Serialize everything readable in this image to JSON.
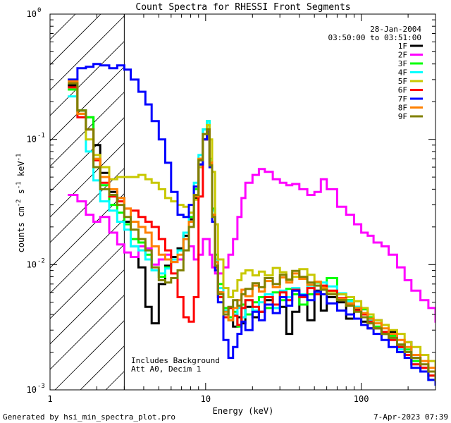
{
  "chart_data": {
    "type": "line",
    "step": true,
    "title": "Count Spectra for RHESSI Front Segments",
    "xlabel": "Energy (keV)",
    "ylabel": "counts cm-2 s-1 keV-1",
    "xscale": "log",
    "yscale": "log",
    "xlim": [
      1,
      300
    ],
    "ylim": [
      0.001,
      1
    ],
    "xticks": [
      {
        "value": 1,
        "label": "1"
      },
      {
        "value": 10,
        "label": "10"
      },
      {
        "value": 100,
        "label": "100"
      }
    ],
    "yticks": [
      {
        "value": 0.001,
        "base": "10",
        "exp": "-3"
      },
      {
        "value": 0.01,
        "base": "10",
        "exp": "-2"
      },
      {
        "value": 0.1,
        "base": "10",
        "exp": "-1"
      },
      {
        "value": 1,
        "base": "10",
        "exp": "0"
      }
    ],
    "shaded_region": {
      "x_from": 1,
      "x_to": 3,
      "style": "diagonal hatching"
    },
    "date": "28-Jan-2004",
    "time_range": "03:50:00 to 03:51:00",
    "annotations": [
      "Includes Background",
      "Att A0, Decim 1"
    ],
    "footer_left": "Generated by hsi_min_spectra_plot.pro",
    "footer_right": "7-Apr-2023 07:39",
    "legend_position": "top-right",
    "series": [
      {
        "name": "1F",
        "color": "#000000",
        "x": [
          1.3,
          1.5,
          1.7,
          1.9,
          2.1,
          2.4,
          2.7,
          3.0,
          3.3,
          3.7,
          4.1,
          4.5,
          5.0,
          5.5,
          6.0,
          6.6,
          7.2,
          7.8,
          8.4,
          9.0,
          9.6,
          10.2,
          10.6,
          11.0,
          11.5,
          12.0,
          13,
          14,
          15,
          16,
          17,
          18,
          20,
          22,
          24,
          27,
          30,
          33,
          36,
          40,
          45,
          50,
          55,
          60,
          70,
          80,
          90,
          100,
          110,
          120,
          135,
          150,
          170,
          190,
          210,
          240,
          270,
          300
        ],
        "y": [
          0.27,
          0.17,
          0.15,
          0.09,
          0.054,
          0.038,
          0.034,
          0.022,
          0.014,
          0.0095,
          0.0046,
          0.0034,
          0.007,
          0.0098,
          0.0115,
          0.0135,
          0.017,
          0.023,
          0.034,
          0.063,
          0.1,
          0.11,
          0.06,
          0.025,
          0.0095,
          0.006,
          0.0038,
          0.0045,
          0.0032,
          0.0038,
          0.0034,
          0.0046,
          0.0038,
          0.0042,
          0.0052,
          0.0045,
          0.0046,
          0.0028,
          0.0042,
          0.0055,
          0.0036,
          0.0062,
          0.0043,
          0.0055,
          0.005,
          0.0037,
          0.0044,
          0.0035,
          0.0031,
          0.0036,
          0.0028,
          0.0029,
          0.0022,
          0.0024,
          0.0018,
          0.0015,
          0.0012,
          0.0012
        ]
      },
      {
        "name": "2F",
        "color": "#ff00ff",
        "x": [
          1.3,
          1.5,
          1.7,
          1.9,
          2.1,
          2.4,
          2.7,
          3.0,
          3.3,
          3.7,
          4.1,
          4.5,
          5.0,
          5.5,
          6.0,
          6.6,
          7.2,
          7.8,
          8.4,
          9.0,
          9.6,
          10.2,
          10.6,
          11.0,
          11.5,
          12.0,
          13,
          14,
          15,
          16,
          17,
          18,
          20,
          22,
          24,
          27,
          30,
          33,
          36,
          40,
          45,
          50,
          55,
          60,
          70,
          80,
          90,
          100,
          110,
          120,
          135,
          150,
          170,
          190,
          210,
          240,
          270,
          300
        ],
        "y": [
          0.036,
          0.032,
          0.025,
          0.022,
          0.024,
          0.018,
          0.0145,
          0.0125,
          0.0115,
          0.014,
          0.0135,
          0.01,
          0.011,
          0.012,
          0.0105,
          0.011,
          0.016,
          0.014,
          0.011,
          0.012,
          0.016,
          0.016,
          0.012,
          0.0095,
          0.0085,
          0.0085,
          0.0095,
          0.012,
          0.016,
          0.024,
          0.034,
          0.045,
          0.052,
          0.058,
          0.055,
          0.048,
          0.045,
          0.043,
          0.044,
          0.04,
          0.036,
          0.038,
          0.048,
          0.04,
          0.029,
          0.025,
          0.021,
          0.018,
          0.017,
          0.015,
          0.014,
          0.012,
          0.0095,
          0.0075,
          0.0062,
          0.0052,
          0.0045,
          0.0035
        ]
      },
      {
        "name": "3F",
        "color": "#00ff00",
        "x": [
          1.3,
          1.5,
          1.7,
          1.9,
          2.1,
          2.4,
          2.7,
          3.0,
          3.3,
          3.7,
          4.1,
          4.5,
          5.0,
          5.5,
          6.0,
          6.6,
          7.2,
          7.8,
          8.4,
          9.0,
          9.6,
          10.2,
          10.6,
          11.0,
          11.5,
          12.0,
          13,
          14,
          15,
          16,
          17,
          18,
          20,
          22,
          24,
          27,
          30,
          33,
          36,
          40,
          45,
          50,
          55,
          60,
          70,
          80,
          90,
          100,
          110,
          120,
          135,
          150,
          170,
          190,
          210,
          240,
          270,
          300
        ],
        "y": [
          0.25,
          0.17,
          0.15,
          0.07,
          0.043,
          0.03,
          0.026,
          0.021,
          0.016,
          0.015,
          0.012,
          0.009,
          0.008,
          0.0095,
          0.011,
          0.013,
          0.018,
          0.024,
          0.04,
          0.07,
          0.12,
          0.14,
          0.07,
          0.028,
          0.012,
          0.007,
          0.0045,
          0.0038,
          0.0042,
          0.0032,
          0.0048,
          0.004,
          0.005,
          0.0055,
          0.0045,
          0.006,
          0.0052,
          0.0064,
          0.0058,
          0.0048,
          0.0058,
          0.0072,
          0.0063,
          0.0078,
          0.0058,
          0.0052,
          0.0046,
          0.0044,
          0.0038,
          0.0032,
          0.0028,
          0.0027,
          0.0023,
          0.0021,
          0.0017,
          0.0014,
          0.0013,
          0.0011
        ]
      },
      {
        "name": "4F",
        "color": "#00ffff",
        "x": [
          1.3,
          1.5,
          1.7,
          1.9,
          2.1,
          2.4,
          2.7,
          3.0,
          3.3,
          3.7,
          4.1,
          4.5,
          5.0,
          5.5,
          6.0,
          6.6,
          7.2,
          7.8,
          8.4,
          9.0,
          9.6,
          10.2,
          10.6,
          11.0,
          11.5,
          12.0,
          13,
          14,
          15,
          16,
          17,
          18,
          20,
          22,
          24,
          27,
          30,
          33,
          36,
          40,
          45,
          50,
          55,
          60,
          70,
          80,
          90,
          100,
          110,
          120,
          135,
          150,
          170,
          190,
          210,
          240,
          270,
          300
        ],
        "y": [
          0.22,
          0.15,
          0.08,
          0.047,
          0.032,
          0.027,
          0.022,
          0.019,
          0.014,
          0.013,
          0.011,
          0.009,
          0.0085,
          0.0093,
          0.011,
          0.013,
          0.018,
          0.026,
          0.045,
          0.075,
          0.12,
          0.14,
          0.068,
          0.027,
          0.011,
          0.0065,
          0.0043,
          0.0036,
          0.004,
          0.0045,
          0.0038,
          0.0052,
          0.0043,
          0.005,
          0.0058,
          0.0045,
          0.0062,
          0.0055,
          0.0065,
          0.0058,
          0.0068,
          0.006,
          0.0072,
          0.0067,
          0.0059,
          0.0051,
          0.0046,
          0.0041,
          0.0036,
          0.0031,
          0.0029,
          0.0025,
          0.0021,
          0.0019,
          0.0016,
          0.0014,
          0.0012,
          0.0011
        ]
      },
      {
        "name": "5F",
        "color": "#c8c800",
        "x": [
          1.3,
          1.5,
          1.7,
          1.9,
          2.1,
          2.4,
          2.7,
          3.0,
          3.3,
          3.7,
          4.1,
          4.5,
          5.0,
          5.5,
          6.0,
          6.6,
          7.2,
          7.8,
          8.4,
          9.0,
          9.6,
          10.2,
          10.6,
          11.0,
          11.5,
          12.0,
          13,
          14,
          15,
          16,
          17,
          18,
          20,
          22,
          24,
          27,
          30,
          33,
          36,
          40,
          45,
          50,
          55,
          60,
          70,
          80,
          90,
          100,
          110,
          120,
          135,
          150,
          170,
          190,
          210,
          240,
          270,
          300
        ],
        "y": [
          0.3,
          0.16,
          0.1,
          0.075,
          0.06,
          0.048,
          0.05,
          0.05,
          0.05,
          0.052,
          0.048,
          0.045,
          0.04,
          0.034,
          0.032,
          0.03,
          0.029,
          0.026,
          0.033,
          0.06,
          0.1,
          0.13,
          0.1,
          0.055,
          0.021,
          0.011,
          0.0065,
          0.0055,
          0.0062,
          0.0075,
          0.0085,
          0.009,
          0.0082,
          0.0088,
          0.0082,
          0.0094,
          0.0087,
          0.0075,
          0.008,
          0.0092,
          0.0083,
          0.0073,
          0.0067,
          0.0061,
          0.0058,
          0.0055,
          0.0051,
          0.0045,
          0.004,
          0.0036,
          0.0033,
          0.003,
          0.0028,
          0.0024,
          0.0022,
          0.0019,
          0.0017,
          0.0015
        ]
      },
      {
        "name": "6F",
        "color": "#ff0000",
        "x": [
          1.3,
          1.5,
          1.7,
          1.9,
          2.1,
          2.4,
          2.7,
          3.0,
          3.3,
          3.7,
          4.1,
          4.5,
          5.0,
          5.5,
          6.0,
          6.6,
          7.2,
          7.8,
          8.4,
          9.0,
          9.6,
          10.2,
          10.6,
          11.0,
          11.5,
          12.0,
          13,
          14,
          15,
          16,
          17,
          18,
          20,
          22,
          24,
          27,
          30,
          33,
          36,
          40,
          45,
          50,
          55,
          60,
          70,
          80,
          90,
          100,
          110,
          120,
          135,
          150,
          170,
          190,
          210,
          240,
          270,
          300
        ],
        "y": [
          0.26,
          0.15,
          0.12,
          0.068,
          0.045,
          0.035,
          0.032,
          0.028,
          0.027,
          0.024,
          0.022,
          0.02,
          0.016,
          0.013,
          0.0085,
          0.0055,
          0.0038,
          0.0035,
          0.0055,
          0.035,
          0.1,
          0.12,
          0.065,
          0.022,
          0.0095,
          0.0055,
          0.0038,
          0.0045,
          0.0039,
          0.0033,
          0.0045,
          0.0052,
          0.0046,
          0.0042,
          0.0055,
          0.0048,
          0.006,
          0.0052,
          0.0063,
          0.0055,
          0.0065,
          0.0058,
          0.0068,
          0.0062,
          0.0054,
          0.0048,
          0.0043,
          0.004,
          0.0035,
          0.0031,
          0.0029,
          0.0025,
          0.0022,
          0.0019,
          0.0016,
          0.0015,
          0.0013,
          0.0012
        ]
      },
      {
        "name": "7F",
        "color": "#0000ff",
        "x": [
          1.3,
          1.5,
          1.7,
          1.9,
          2.1,
          2.4,
          2.7,
          3.0,
          3.3,
          3.7,
          4.1,
          4.5,
          5.0,
          5.5,
          6.0,
          6.6,
          7.2,
          7.8,
          8.4,
          9.0,
          9.6,
          10.2,
          10.6,
          11.0,
          11.5,
          12.0,
          13,
          14,
          15,
          16,
          17,
          18,
          20,
          22,
          24,
          27,
          30,
          33,
          36,
          40,
          45,
          50,
          55,
          60,
          70,
          80,
          90,
          100,
          110,
          120,
          135,
          150,
          170,
          190,
          210,
          240,
          270,
          300
        ],
        "y": [
          0.3,
          0.37,
          0.38,
          0.4,
          0.39,
          0.37,
          0.39,
          0.36,
          0.3,
          0.24,
          0.19,
          0.14,
          0.1,
          0.065,
          0.038,
          0.025,
          0.024,
          0.03,
          0.042,
          0.063,
          0.1,
          0.115,
          0.06,
          0.022,
          0.009,
          0.005,
          0.0025,
          0.0018,
          0.0022,
          0.0028,
          0.0035,
          0.003,
          0.0042,
          0.0036,
          0.0048,
          0.0041,
          0.0055,
          0.0047,
          0.0062,
          0.0057,
          0.0052,
          0.0061,
          0.0058,
          0.0049,
          0.0043,
          0.004,
          0.0037,
          0.0033,
          0.0031,
          0.0028,
          0.0025,
          0.0022,
          0.002,
          0.0018,
          0.0015,
          0.0014,
          0.0012,
          0.0011
        ]
      },
      {
        "name": "8F",
        "color": "#ff8000",
        "x": [
          1.3,
          1.5,
          1.7,
          1.9,
          2.1,
          2.4,
          2.7,
          3.0,
          3.3,
          3.7,
          4.1,
          4.5,
          5.0,
          5.5,
          6.0,
          6.6,
          7.2,
          7.8,
          8.4,
          9.0,
          9.6,
          10.2,
          10.6,
          11.0,
          11.5,
          12.0,
          13,
          14,
          15,
          16,
          17,
          18,
          20,
          22,
          24,
          27,
          30,
          33,
          36,
          40,
          45,
          50,
          55,
          60,
          70,
          80,
          90,
          100,
          110,
          120,
          135,
          150,
          170,
          190,
          210,
          240,
          270,
          300
        ],
        "y": [
          0.29,
          0.16,
          0.12,
          0.07,
          0.05,
          0.04,
          0.034,
          0.028,
          0.022,
          0.02,
          0.018,
          0.014,
          0.012,
          0.011,
          0.0105,
          0.012,
          0.016,
          0.022,
          0.035,
          0.07,
          0.11,
          0.12,
          0.065,
          0.025,
          0.0105,
          0.006,
          0.0042,
          0.0036,
          0.0045,
          0.0052,
          0.0063,
          0.0056,
          0.0068,
          0.0061,
          0.0074,
          0.0066,
          0.0079,
          0.0072,
          0.0085,
          0.0077,
          0.0069,
          0.0073,
          0.0065,
          0.0058,
          0.0053,
          0.0049,
          0.0045,
          0.0041,
          0.0037,
          0.0034,
          0.0031,
          0.0028,
          0.0025,
          0.0022,
          0.0019,
          0.0017,
          0.0015,
          0.0013
        ]
      },
      {
        "name": "9F",
        "color": "#808000",
        "x": [
          1.3,
          1.5,
          1.7,
          1.9,
          2.1,
          2.4,
          2.7,
          3.0,
          3.3,
          3.7,
          4.1,
          4.5,
          5.0,
          5.5,
          6.0,
          6.6,
          7.2,
          7.8,
          8.4,
          9.0,
          9.6,
          10.2,
          10.6,
          11.0,
          11.5,
          12.0,
          13,
          14,
          15,
          16,
          17,
          18,
          20,
          22,
          24,
          27,
          30,
          33,
          36,
          40,
          45,
          50,
          55,
          60,
          70,
          80,
          90,
          100,
          110,
          120,
          135,
          150,
          170,
          190,
          210,
          240,
          270,
          300
        ],
        "y": [
          0.28,
          0.17,
          0.12,
          0.06,
          0.04,
          0.036,
          0.03,
          0.024,
          0.019,
          0.016,
          0.013,
          0.0095,
          0.0075,
          0.0072,
          0.0078,
          0.009,
          0.013,
          0.02,
          0.036,
          0.068,
          0.11,
          0.12,
          0.062,
          0.024,
          0.0098,
          0.0058,
          0.004,
          0.0046,
          0.0052,
          0.0047,
          0.0058,
          0.0064,
          0.0071,
          0.0066,
          0.0078,
          0.007,
          0.0083,
          0.0076,
          0.0089,
          0.008,
          0.0072,
          0.0068,
          0.0063,
          0.0058,
          0.0052,
          0.0047,
          0.0042,
          0.0038,
          0.0034,
          0.0031,
          0.0028,
          0.0026,
          0.0023,
          0.002,
          0.0018,
          0.0016,
          0.0014,
          0.0012
        ]
      }
    ]
  }
}
